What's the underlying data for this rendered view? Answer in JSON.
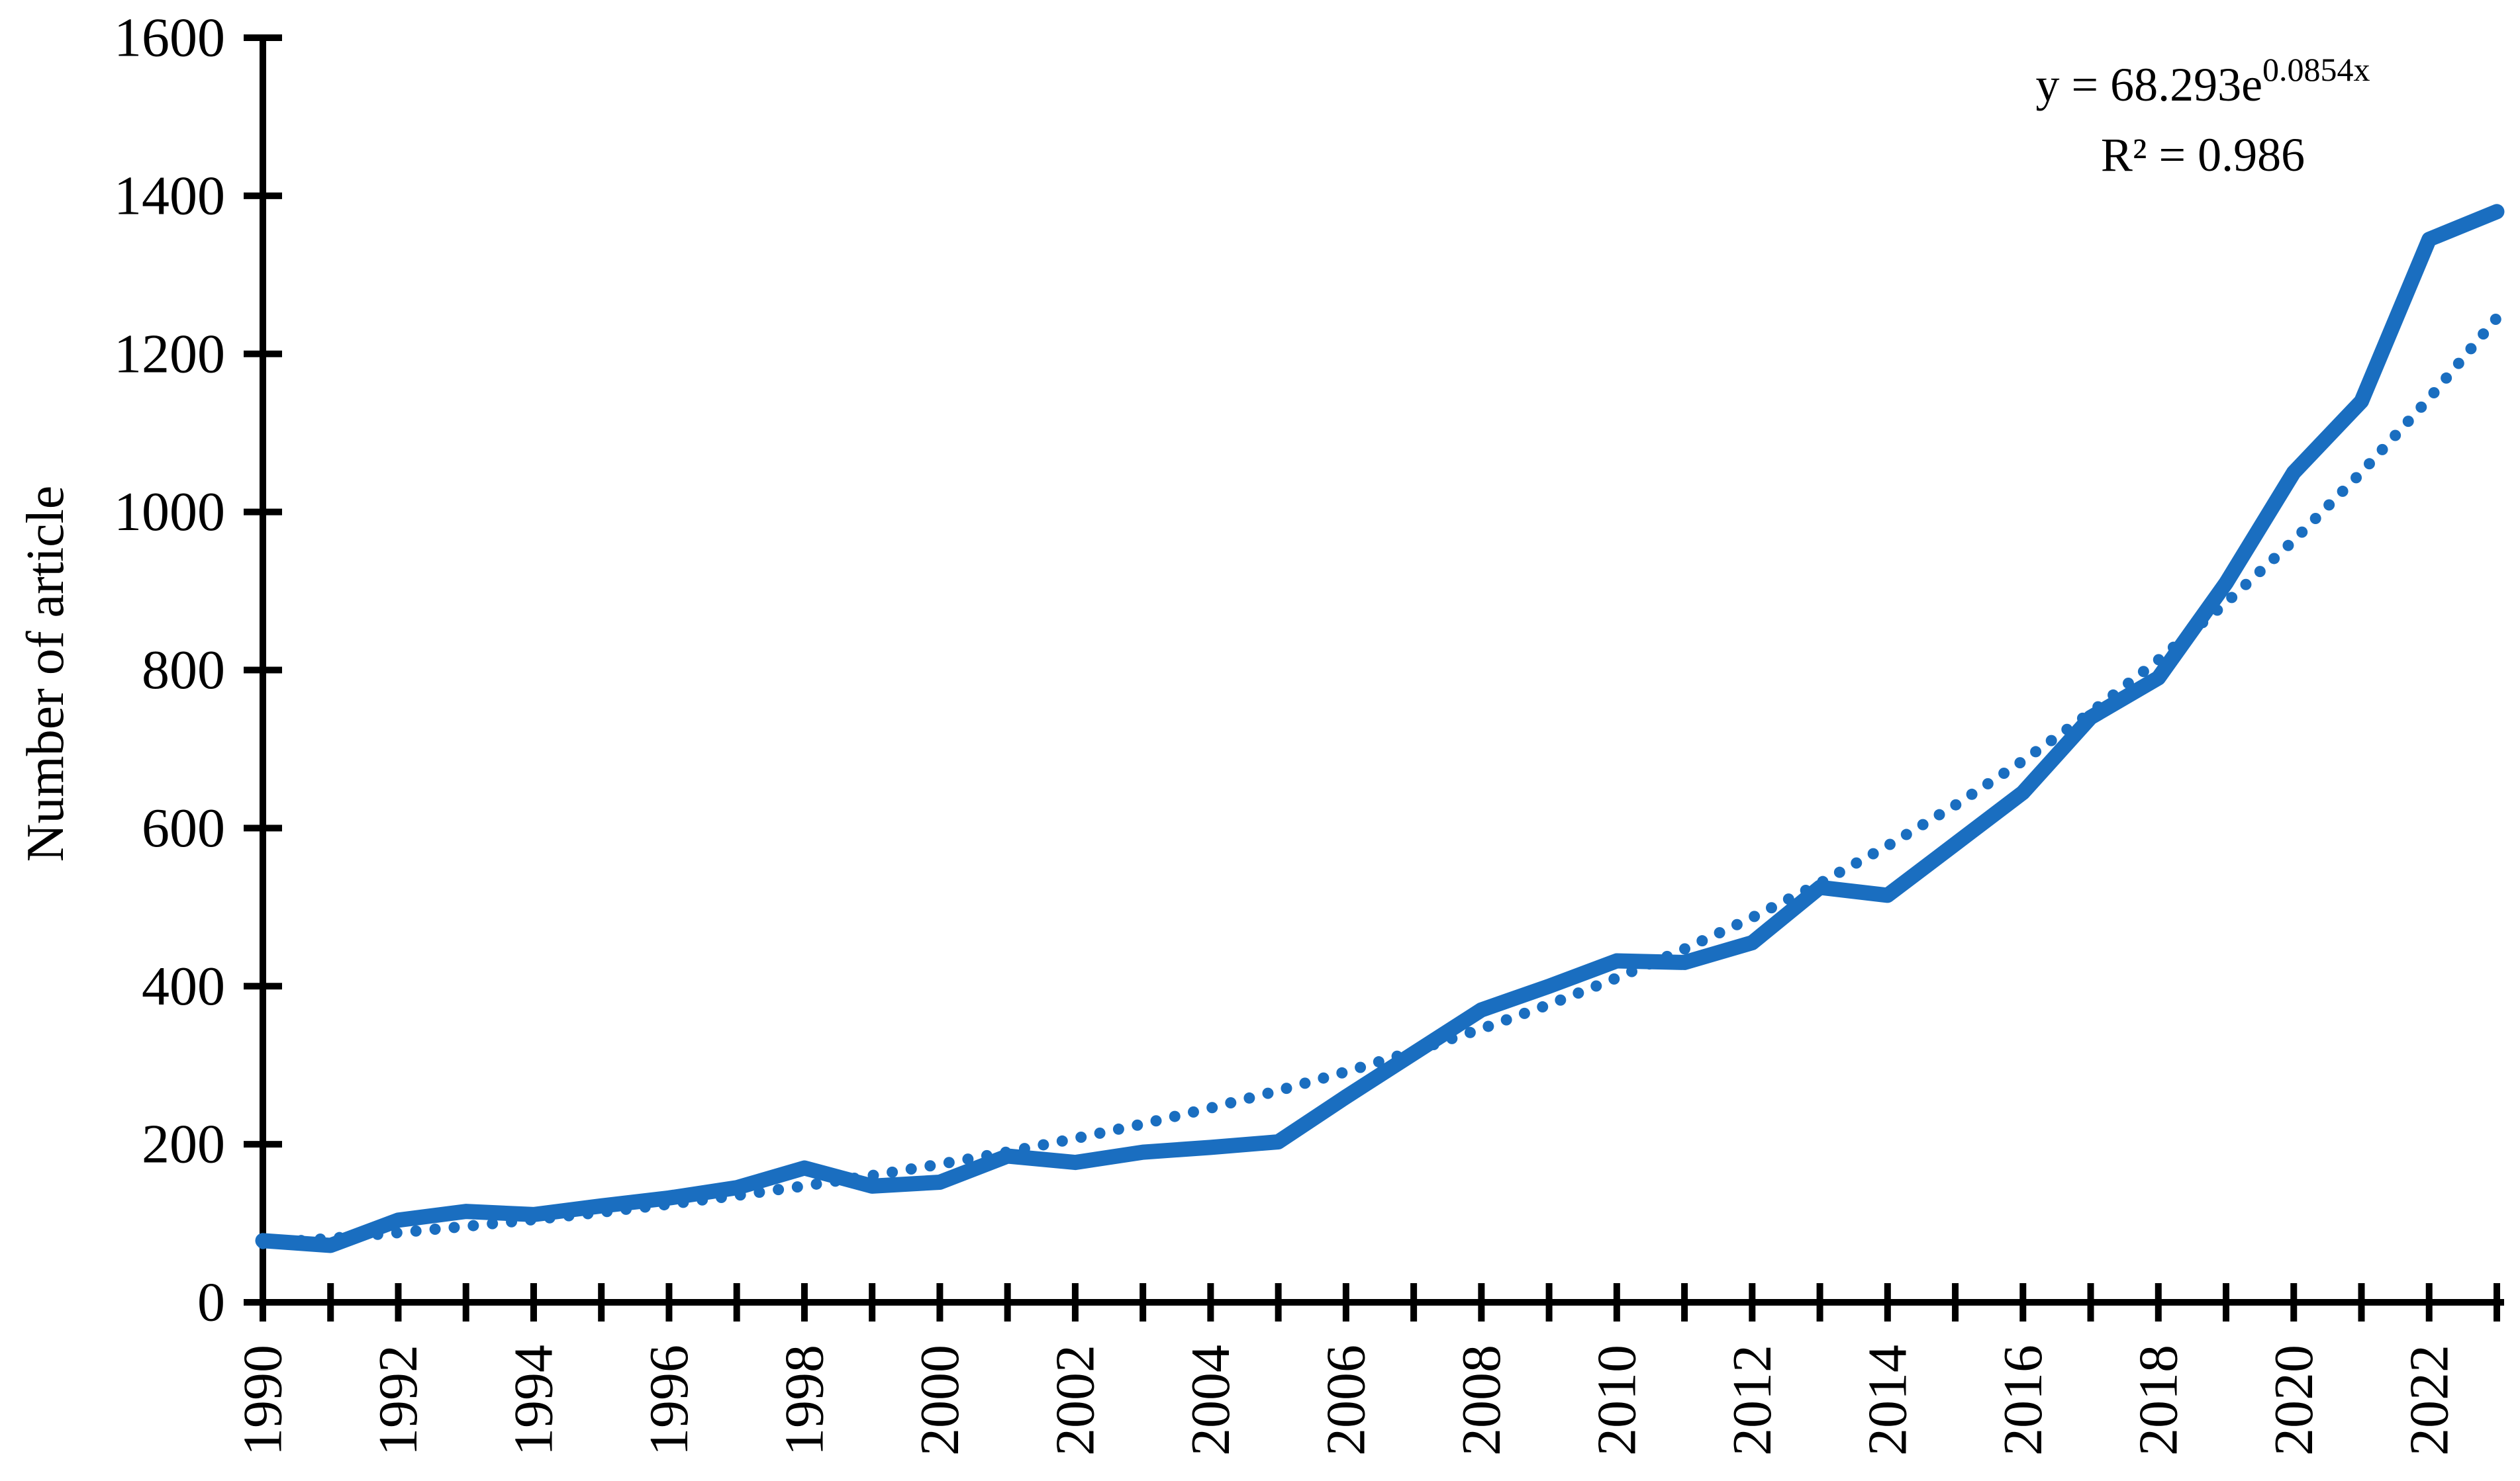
{
  "page": {
    "background_color": "#ffffff"
  },
  "chart_data": {
    "type": "line",
    "title": "",
    "xlabel": "",
    "ylabel": "Number of article",
    "x": [
      1990,
      1991,
      1992,
      1993,
      1994,
      1995,
      1996,
      1997,
      1998,
      1999,
      2000,
      2001,
      2002,
      2003,
      2004,
      2005,
      2006,
      2007,
      2008,
      2009,
      2010,
      2011,
      2012,
      2013,
      2014,
      2015,
      2016,
      2017,
      2018,
      2019,
      2020,
      2021,
      2022,
      2023
    ],
    "series": [
      {
        "name": "Number of articles",
        "style": "solid",
        "values": [
          78,
          72,
          104,
          115,
          111,
          122,
          132,
          145,
          170,
          147,
          152,
          185,
          177,
          190,
          196,
          203,
          260,
          315,
          370,
          400,
          432,
          430,
          455,
          525,
          515,
          580,
          645,
          740,
          790,
          910,
          1050,
          1140,
          1345,
          1380
        ]
      },
      {
        "name": "Exponential trendline",
        "style": "dotted",
        "values": [
          74.4,
          81.0,
          88.2,
          96.1,
          104.7,
          114.0,
          124.2,
          135.2,
          147.3,
          160.4,
          174.7,
          190.3,
          207.3,
          225.7,
          245.9,
          267.8,
          291.7,
          317.7,
          346.0,
          376.8,
          410.4,
          447.0,
          486.8,
          530.3,
          577.5,
          629.0,
          685.1,
          746.2,
          812.7,
          885.1,
          964.0,
          1050.0,
          1143.6,
          1245.5
        ]
      }
    ],
    "ylim": [
      0,
      1600
    ],
    "ytick_step": 200,
    "yticks": [
      0,
      200,
      400,
      600,
      800,
      1000,
      1200,
      1400,
      1600
    ],
    "xtick_label_step": 2,
    "xtick_labels": [
      "1990",
      "1992",
      "1994",
      "1996",
      "1998",
      "2000",
      "2002",
      "2004",
      "2006",
      "2008",
      "2010",
      "2012",
      "2014",
      "2016",
      "2018",
      "2020",
      "2022"
    ],
    "grid": false,
    "legend_position": "none",
    "annotation": {
      "equation_base": "y = 68.293e",
      "equation_exponent": "0.0854x",
      "r_squared": "R² = 0.986"
    },
    "colors": {
      "line": "#1a6ec0",
      "trendline": "#1a6ec0",
      "axis": "#000000",
      "text": "#000000"
    }
  }
}
